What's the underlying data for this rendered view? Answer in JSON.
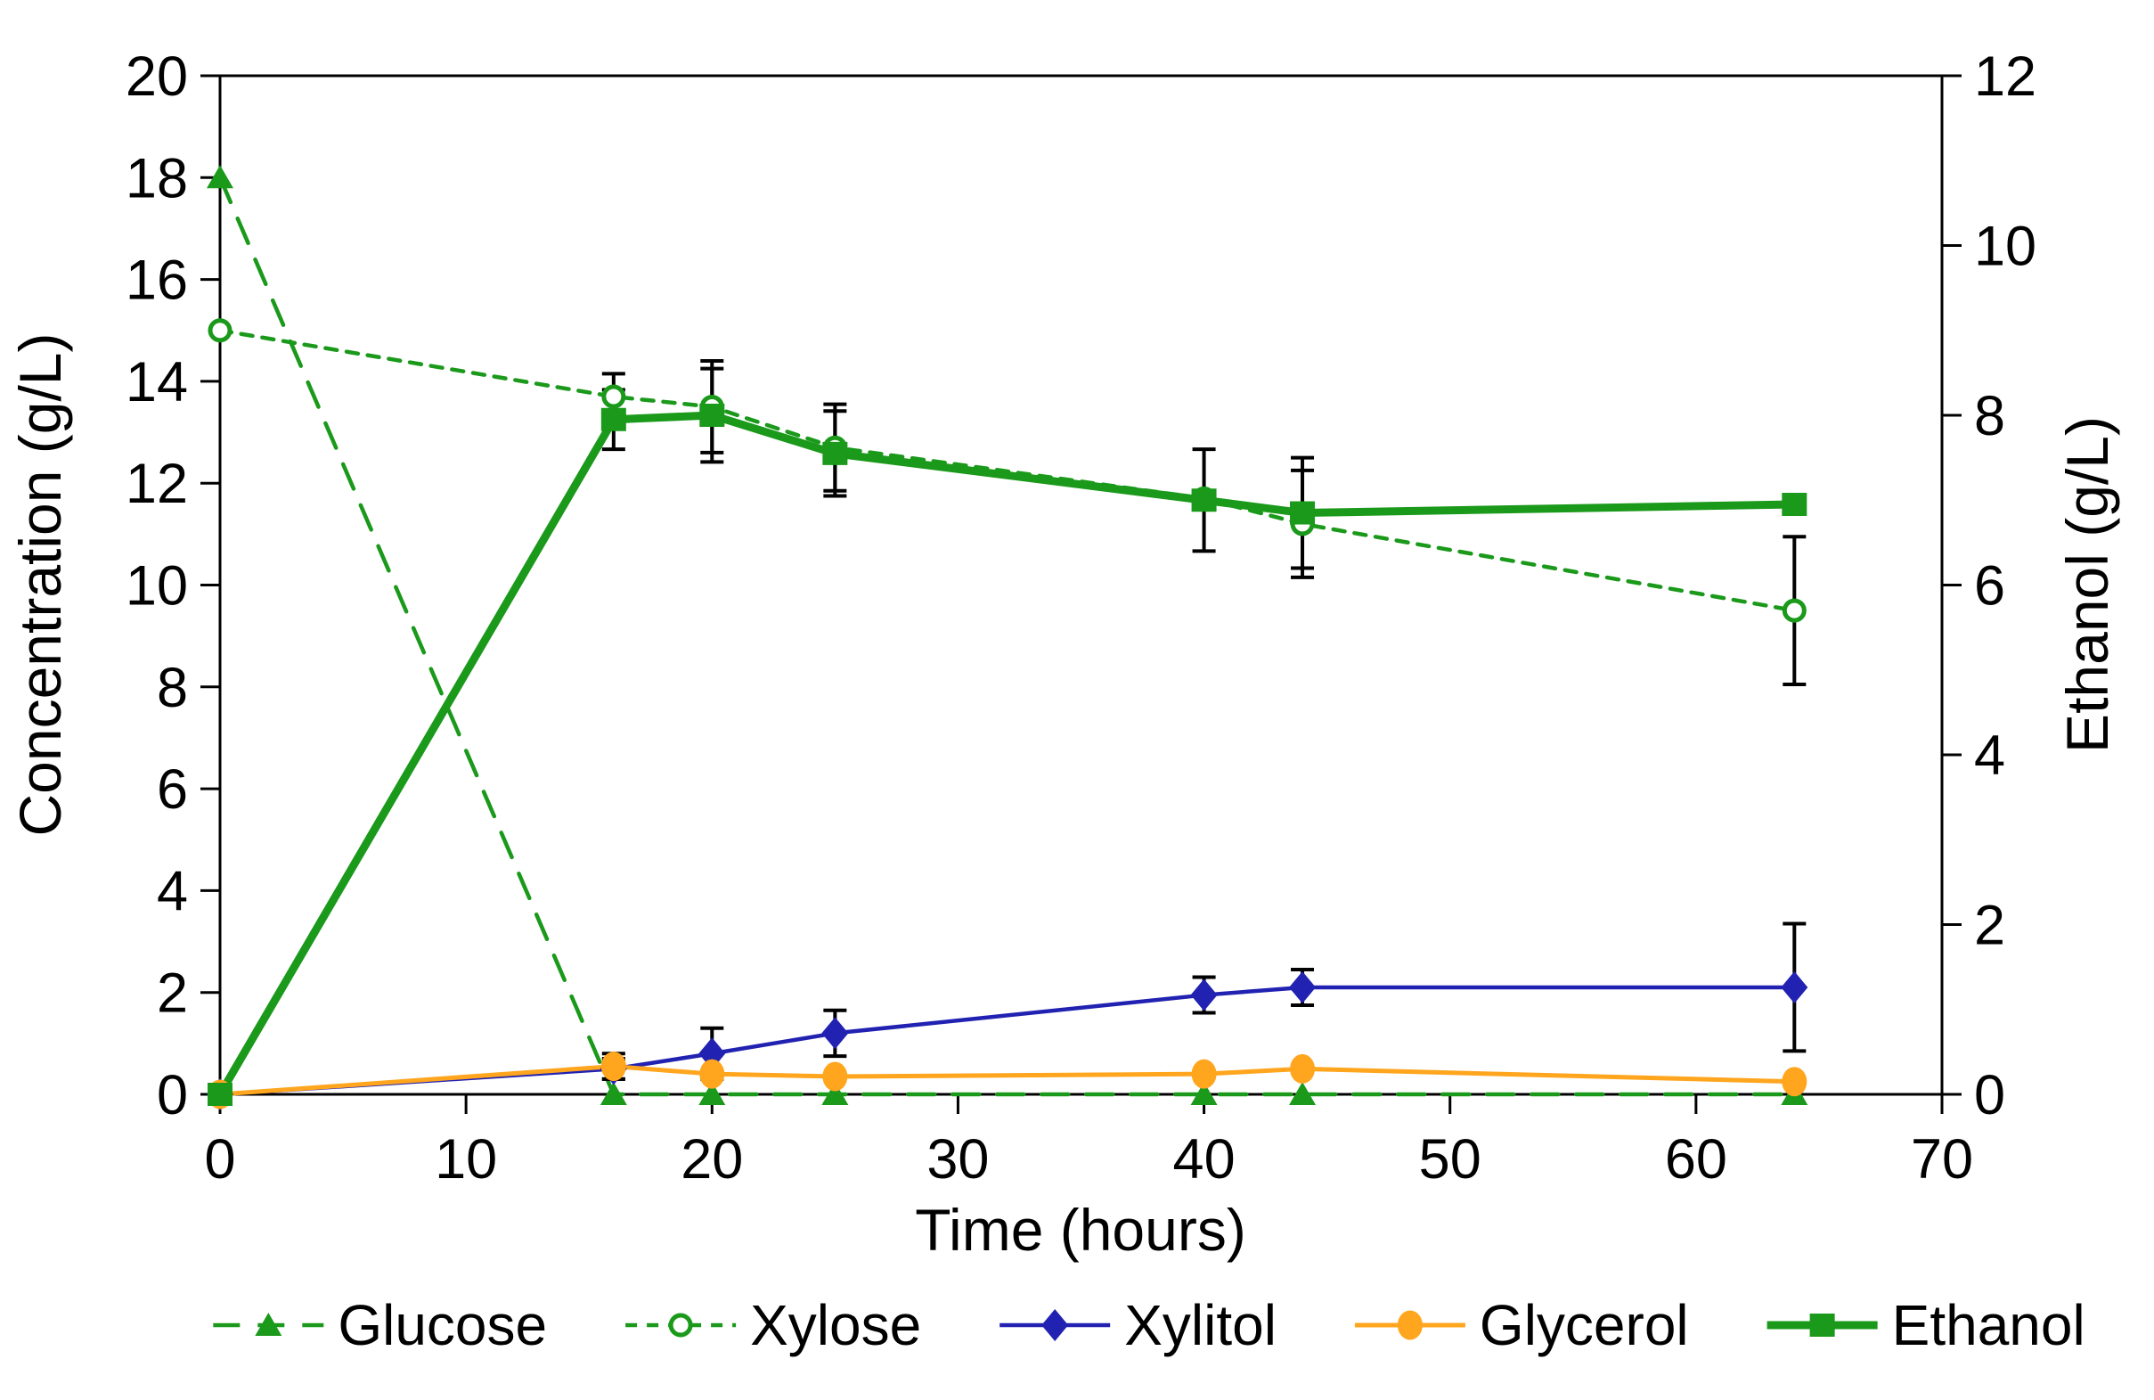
{
  "chart_data": {
    "type": "line",
    "x": [
      0,
      16,
      20,
      25,
      40,
      44,
      64
    ],
    "x_axis": {
      "title": "Time (hours)",
      "range": [
        0,
        70
      ],
      "ticks": [
        0,
        10,
        20,
        30,
        40,
        50,
        60,
        70
      ]
    },
    "left_axis": {
      "title": "Concentration (g/L)",
      "range": [
        0,
        20
      ],
      "ticks": [
        0,
        2,
        4,
        6,
        8,
        10,
        12,
        14,
        16,
        18,
        20
      ]
    },
    "right_axis": {
      "title": "Ethanol (g/L)",
      "range": [
        0,
        12
      ],
      "ticks": [
        0,
        2,
        4,
        6,
        8,
        10,
        12
      ]
    },
    "grid": false,
    "legend_position": "bottom",
    "frame_color": "#000000",
    "error_bar_color": "#000000",
    "series": [
      {
        "name": "Glucose",
        "axis": "left",
        "color": "#1A991A",
        "line": "dash-long",
        "line_width": 4.5,
        "marker": "triangle",
        "values": [
          18,
          0,
          0,
          0,
          0,
          0,
          0
        ],
        "errors": [
          0,
          0,
          0,
          0,
          0,
          0,
          0
        ]
      },
      {
        "name": "Xylose",
        "axis": "left",
        "color": "#1A991A",
        "line": "dash-short",
        "line_width": 4.5,
        "marker": "circle-open",
        "values": [
          15.0,
          13.7,
          13.5,
          12.7,
          11.7,
          11.2,
          9.5
        ],
        "errors": [
          0,
          0.45,
          0.9,
          0.85,
          0,
          1.05,
          1.45
        ]
      },
      {
        "name": "Xylitol",
        "axis": "left",
        "color": "#2222B2",
        "line": "solid",
        "line_width": 4.5,
        "marker": "diamond",
        "values": [
          0,
          0.5,
          0.8,
          1.2,
          1.95,
          2.1,
          2.1
        ],
        "errors": [
          0,
          0.2,
          0.5,
          0.45,
          0.35,
          0.35,
          1.25
        ]
      },
      {
        "name": "Glycerol",
        "axis": "left",
        "color": "#FFA51E",
        "line": "solid",
        "line_width": 5,
        "marker": "circle",
        "values": [
          0,
          0.55,
          0.4,
          0.35,
          0.4,
          0.5,
          0.25
        ],
        "errors": [
          0,
          0.25,
          0,
          0,
          0,
          0,
          0
        ]
      },
      {
        "name": "Ethanol",
        "axis": "right",
        "color": "#1A991A",
        "line": "solid",
        "line_width": 9,
        "marker": "square",
        "values": [
          0,
          7.95,
          8.0,
          7.55,
          7.0,
          6.85,
          6.95
        ],
        "errors": [
          0,
          0.35,
          0.55,
          0.5,
          0.6,
          0.65,
          0
        ]
      }
    ]
  }
}
